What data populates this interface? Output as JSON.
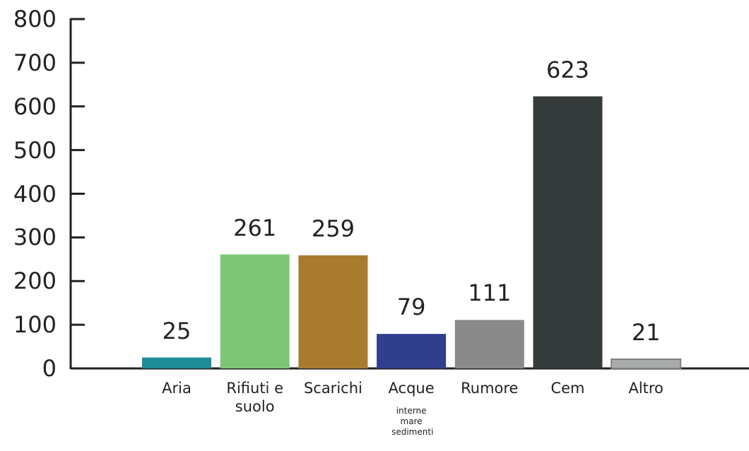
{
  "chart_data": {
    "type": "bar",
    "categories": [
      "Aria",
      "Rifiuti e suolo",
      "Scarichi",
      "Acque",
      "Rumore",
      "Cem",
      "Altro"
    ],
    "values": [
      25,
      261,
      259,
      79,
      111,
      623,
      21
    ],
    "colors": [
      "#1f8b97",
      "#7cc676",
      "#a97b2f",
      "#2f3f8e",
      "#8a8a8a",
      "#353a3a",
      "#a9abab"
    ],
    "annotations": [
      {
        "category": "Acque",
        "text": "interne mare sedimenti"
      }
    ],
    "ylim": [
      0,
      800
    ],
    "yticks": [
      0,
      100,
      200,
      300,
      400,
      500,
      600,
      700,
      800
    ]
  }
}
